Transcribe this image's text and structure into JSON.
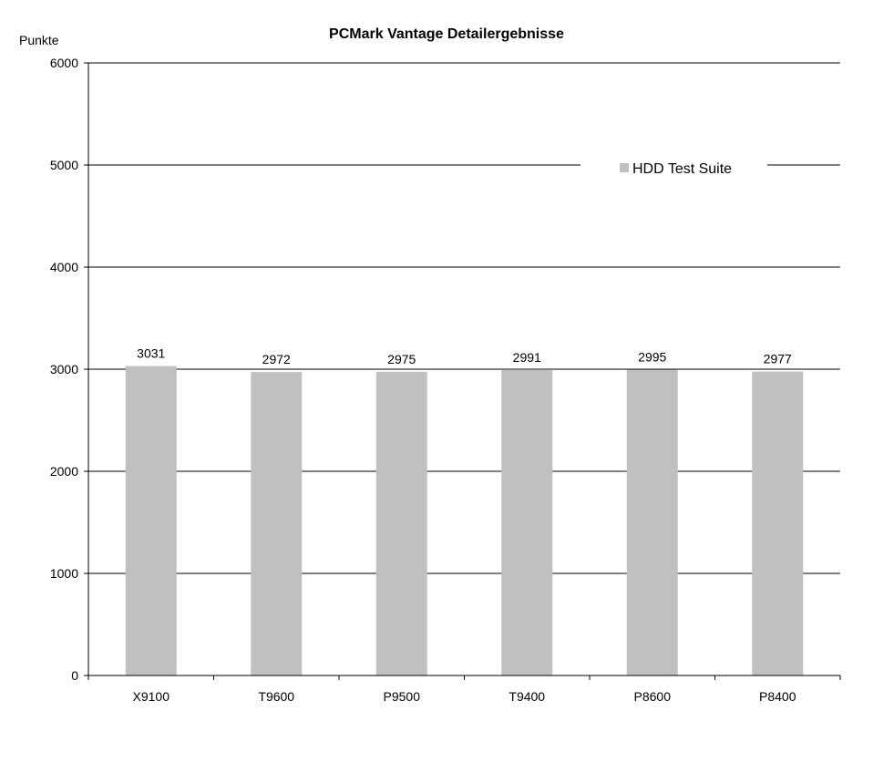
{
  "chart_data": {
    "type": "bar",
    "title": "PCMark Vantage Detailergebnisse",
    "ylabel": "Punkte",
    "xlabel": "",
    "categories": [
      "X9100",
      "T9600",
      "P9500",
      "T9400",
      "P8600",
      "P8400"
    ],
    "series": [
      {
        "name": "HDD Test Suite",
        "values": [
          3031,
          2972,
          2975,
          2991,
          2995,
          2977
        ]
      }
    ],
    "ylim": [
      0,
      6000
    ],
    "yticks": [
      "0",
      "1000",
      "2000",
      "3000",
      "4000",
      "5000",
      "6000"
    ],
    "data_labels": [
      "3031",
      "2972",
      "2975",
      "2991",
      "2995",
      "2977"
    ],
    "grid": true,
    "legend_position": "top-right",
    "colors": {
      "bar": "#c0c0c0",
      "grid": "#000000",
      "axis": "#000000"
    }
  }
}
